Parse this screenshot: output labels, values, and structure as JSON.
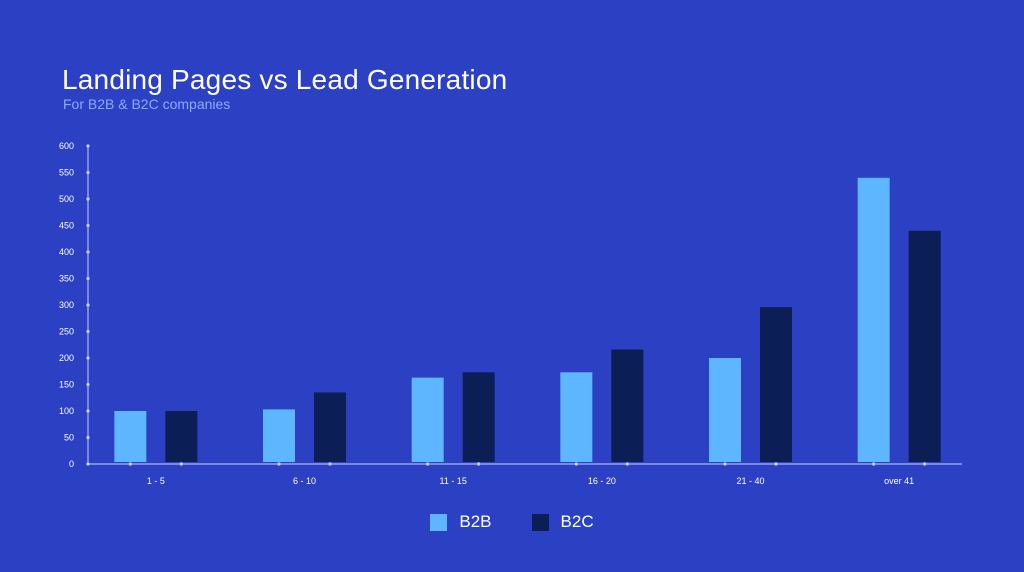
{
  "chart_data": {
    "type": "bar",
    "title": "Landing Pages vs Lead Generation",
    "subtitle": "For B2B & B2C companies",
    "categories": [
      "1 - 5",
      "6 - 10",
      "11 - 15",
      "16 - 20",
      "21 - 40",
      "over 41"
    ],
    "series": [
      {
        "name": "B2B",
        "color": "#5eb6ff",
        "values": [
          100,
          103,
          163,
          173,
          200,
          540
        ]
      },
      {
        "name": "B2C",
        "color": "#0b1e55",
        "values": [
          100,
          135,
          173,
          216,
          296,
          440
        ]
      }
    ],
    "yticks": [
      0,
      50,
      100,
      150,
      200,
      250,
      300,
      350,
      400,
      450,
      500,
      550,
      600
    ],
    "ylim": [
      0,
      600
    ],
    "xlabel": "",
    "ylabel": "",
    "grid": false,
    "legend_position": "bottom-center"
  }
}
